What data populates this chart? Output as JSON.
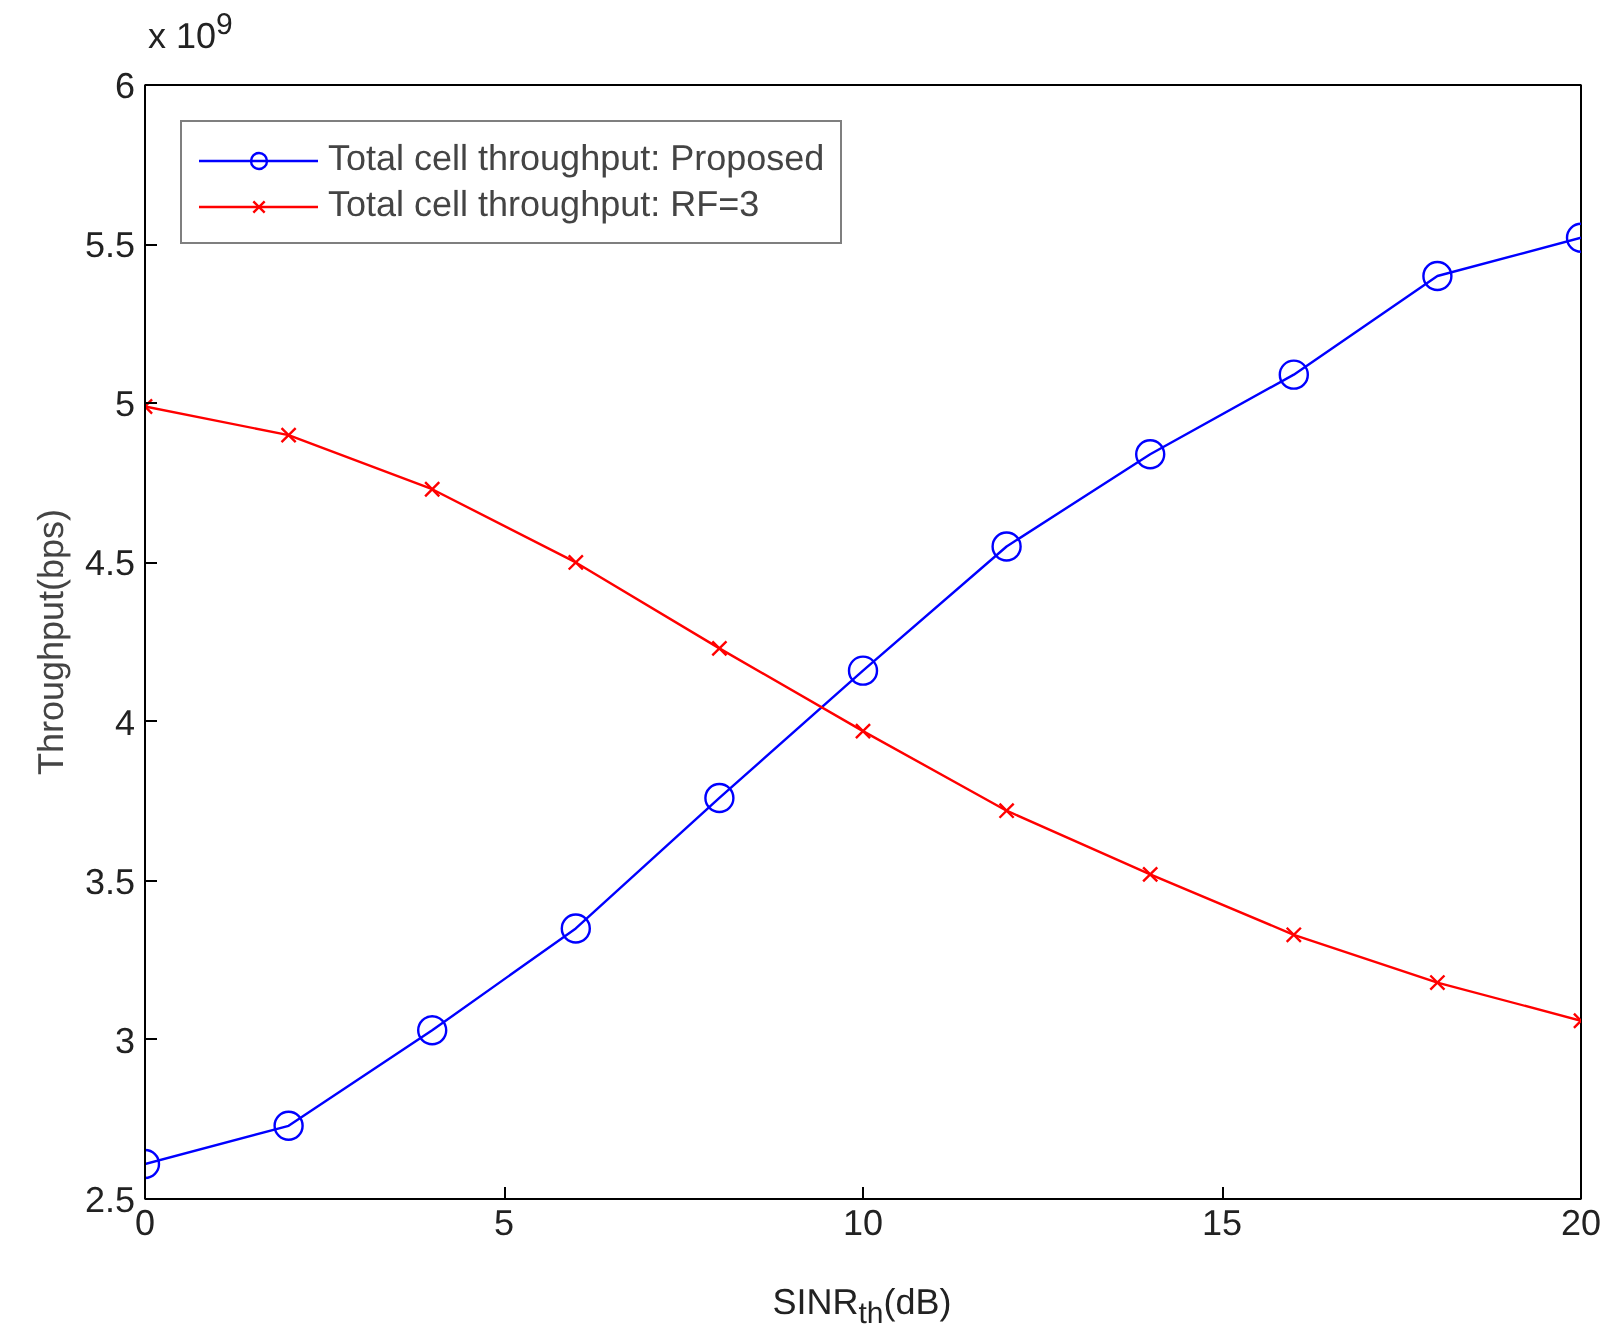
{
  "chart_data": {
    "type": "line",
    "xlabel": "SINR$_{th}$(dB)",
    "ylabel": "Throughput(bps)",
    "annotations": [
      "x 10$^{9}$"
    ],
    "x": [
      0,
      2,
      4,
      6,
      8,
      10,
      12,
      14,
      16,
      18,
      20
    ],
    "series": [
      {
        "name": "Total cell throughput: Proposed",
        "color": "#0000ff",
        "marker": "circle",
        "values": [
          2.61,
          2.73,
          3.03,
          3.35,
          3.76,
          4.16,
          4.55,
          4.84,
          5.09,
          5.4,
          5.52
        ]
      },
      {
        "name": "Total cell throughput: RF=3",
        "color": "#ff0000",
        "marker": "cross",
        "values": [
          4.99,
          4.9,
          4.73,
          4.5,
          4.23,
          3.97,
          3.72,
          3.52,
          3.33,
          3.18,
          3.06
        ]
      }
    ],
    "xlim": [
      0,
      20
    ],
    "xticks": [
      0,
      5,
      10,
      15,
      20
    ],
    "ylim": [
      2.5,
      6
    ],
    "yticks": [
      2.5,
      3,
      3.5,
      4,
      4.5,
      5,
      5.5,
      6
    ],
    "grid": false,
    "legend": "top left",
    "line_style": "solid"
  }
}
